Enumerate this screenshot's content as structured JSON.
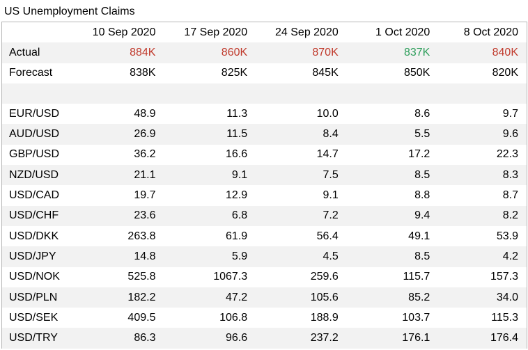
{
  "chart_data": {
    "type": "table",
    "title": "US Unemployment Claims",
    "columns": [
      "10 Sep 2020",
      "17 Sep 2020",
      "24 Sep 2020",
      "1 Oct 2020",
      "8 Oct 2020"
    ],
    "actual": {
      "label": "Actual",
      "values": [
        "884K",
        "860K",
        "870K",
        "837K",
        "840K"
      ],
      "colors": [
        "#c0392b",
        "#c0392b",
        "#c0392b",
        "#2e9e5b",
        "#c0392b"
      ]
    },
    "forecast": {
      "label": "Forecast",
      "values": [
        "838K",
        "825K",
        "845K",
        "850K",
        "820K"
      ]
    },
    "rows": [
      {
        "label": "EUR/USD",
        "values": [
          "48.9",
          "11.3",
          "10.0",
          "8.6",
          "9.7"
        ]
      },
      {
        "label": "AUD/USD",
        "values": [
          "26.9",
          "11.5",
          "8.4",
          "5.5",
          "9.6"
        ]
      },
      {
        "label": "GBP/USD",
        "values": [
          "36.2",
          "16.6",
          "14.7",
          "17.2",
          "22.3"
        ]
      },
      {
        "label": "NZD/USD",
        "values": [
          "21.1",
          "9.1",
          "7.5",
          "8.5",
          "8.3"
        ]
      },
      {
        "label": "USD/CAD",
        "values": [
          "19.7",
          "12.9",
          "9.1",
          "8.8",
          "8.7"
        ]
      },
      {
        "label": "USD/CHF",
        "values": [
          "23.6",
          "6.8",
          "7.2",
          "9.4",
          "8.2"
        ]
      },
      {
        "label": "USD/DKK",
        "values": [
          "263.8",
          "61.9",
          "56.4",
          "49.1",
          "53.9"
        ]
      },
      {
        "label": "USD/JPY",
        "values": [
          "14.8",
          "5.9",
          "4.5",
          "8.5",
          "4.2"
        ]
      },
      {
        "label": "USD/NOK",
        "values": [
          "525.8",
          "1067.3",
          "259.6",
          "115.7",
          "157.3"
        ]
      },
      {
        "label": "USD/PLN",
        "values": [
          "182.2",
          "47.2",
          "105.6",
          "85.2",
          "34.0"
        ]
      },
      {
        "label": "USD/SEK",
        "values": [
          "409.5",
          "106.8",
          "188.9",
          "103.7",
          "115.3"
        ]
      },
      {
        "label": "USD/TRY",
        "values": [
          "86.3",
          "96.6",
          "237.2",
          "176.1",
          "176.4"
        ]
      }
    ]
  }
}
